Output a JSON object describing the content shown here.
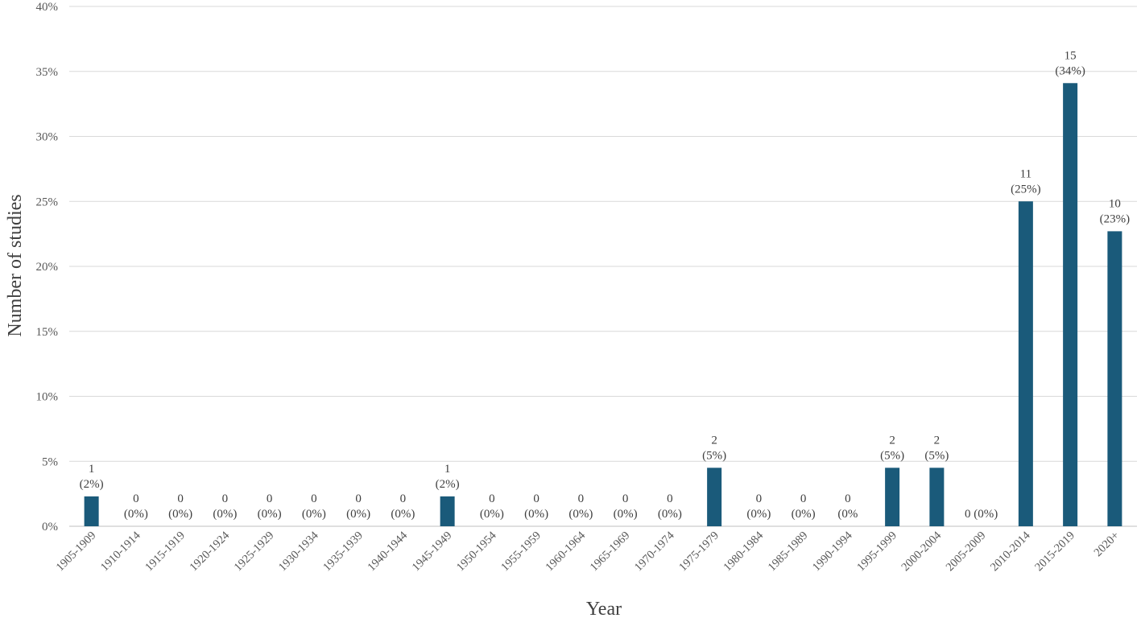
{
  "chart_data": {
    "type": "bar",
    "title": "",
    "xlabel": "Year",
    "ylabel": "Number of studies",
    "ylim": [
      0,
      40
    ],
    "y_ticks": [
      "0%",
      "5%",
      "10%",
      "15%",
      "20%",
      "25%",
      "30%",
      "35%",
      "40%"
    ],
    "grid": true,
    "bar_color": "#1a5a7a",
    "categories": [
      "1905-1909",
      "1910-1914",
      "1915-1919",
      "1920-1924",
      "1925-1929",
      "1930-1934",
      "1935-1939",
      "1940-1944",
      "1945-1949",
      "1950-1954",
      "1955-1959",
      "1960-1964",
      "1965-1969",
      "1970-1974",
      "1975-1979",
      "1980-1984",
      "1985-1989",
      "1990-1994",
      "1995-1999",
      "2000-2004",
      "2005-2009",
      "2010-2014",
      "2015-2019",
      "2020+"
    ],
    "values": [
      2.3,
      0,
      0,
      0,
      0,
      0,
      0,
      0,
      2.3,
      0,
      0,
      0,
      0,
      0,
      4.5,
      0,
      0,
      0,
      4.5,
      4.5,
      0,
      25,
      34.1,
      22.7
    ],
    "counts": [
      "1",
      "0",
      "0",
      "0",
      "0",
      "0",
      "0",
      "0",
      "1",
      "0",
      "0",
      "0",
      "0",
      "0",
      "2",
      "0",
      "0",
      "0",
      "2",
      "2",
      "0 (0%)",
      "11",
      "15",
      "10"
    ],
    "percents": [
      "(2%)",
      "(0%)",
      "(0%)",
      "(0%)",
      "(0%)",
      "(0%)",
      "(0%)",
      "(0%)",
      "(2%)",
      "(0%)",
      "(0%)",
      "(0%)",
      "(0%)",
      "(0%)",
      "(5%)",
      "(0%)",
      "(0%)",
      "(0%",
      "(5%)",
      "(5%)",
      "",
      "(25%)",
      "(34%)",
      "(23%)"
    ]
  }
}
